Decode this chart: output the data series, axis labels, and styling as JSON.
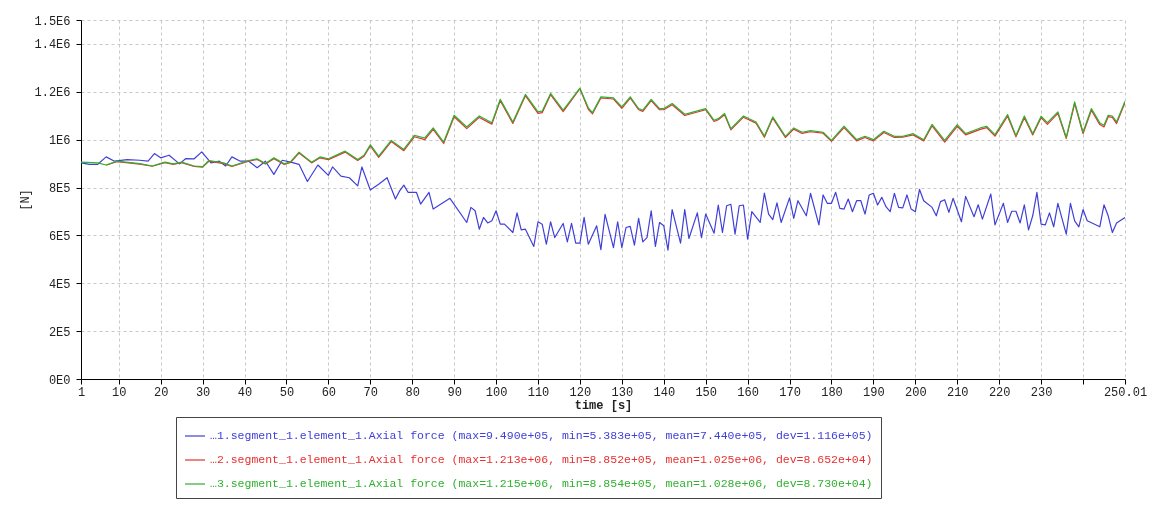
{
  "chart_data": {
    "type": "line",
    "xlabel": "time [s]",
    "ylabel": "[N]",
    "legend": "bottom",
    "grid": true,
    "marker": "none",
    "line_style": "solid",
    "xlim": [
      1,
      250.01
    ],
    "xticks": [
      1,
      10,
      20,
      30,
      40,
      50,
      60,
      70,
      80,
      90,
      100,
      110,
      120,
      130,
      140,
      150,
      160,
      170,
      180,
      190,
      200,
      210,
      220,
      230,
      {
        "value": 240,
        "label": null
      },
      250.01
    ],
    "ylim": [
      0,
      1500000
    ],
    "yticks": [
      {
        "value": 0,
        "label": "0E0"
      },
      {
        "value": 200000,
        "label": "2E5"
      },
      {
        "value": 400000,
        "label": "4E5"
      },
      {
        "value": 600000,
        "label": "6E5"
      },
      {
        "value": 800000,
        "label": "8E5"
      },
      {
        "value": 1000000,
        "label": "1E6"
      },
      {
        "value": 1200000,
        "label": "1.2E6"
      },
      {
        "value": 1400000,
        "label": "1.4E6"
      },
      {
        "value": 1500000,
        "label": "1.5E6"
      }
    ],
    "series": [
      {
        "name": "…1.segment_1.element_1.Axial force (max=9.490e+05, min=5.383e+05, mean=7.440e+05, dev=1.116e+05)",
        "color": "#4040d8",
        "x": [
          1,
          3,
          5,
          7,
          9,
          12,
          15,
          17,
          18.5,
          20,
          22,
          24.5,
          26,
          28,
          29.8,
          32,
          34,
          35.5,
          37,
          39,
          41,
          43,
          45,
          47,
          49,
          51,
          53,
          55,
          57.5,
          60,
          61,
          63,
          65,
          67,
          68,
          70,
          72,
          74,
          76,
          77,
          78,
          79,
          81,
          82,
          84,
          85,
          89,
          93,
          94,
          95,
          96,
          97,
          98,
          99,
          100,
          101,
          102,
          104,
          105,
          106,
          107,
          109,
          110,
          111,
          112,
          113,
          114,
          116,
          117,
          118,
          119,
          120,
          121,
          122,
          124,
          125,
          126,
          128,
          129,
          130,
          131,
          132,
          133,
          134,
          135,
          136,
          137,
          138,
          139,
          140,
          141,
          142,
          144,
          145,
          146,
          148,
          149,
          150,
          152,
          153,
          154,
          155,
          156,
          157,
          158,
          159,
          160,
          161,
          163,
          164,
          165,
          166,
          167,
          168,
          170,
          171,
          172,
          174,
          175,
          177,
          178,
          179,
          180,
          181,
          182,
          183,
          184,
          185,
          186,
          187,
          188,
          189,
          190,
          191,
          192,
          193,
          194,
          195,
          196,
          197,
          198,
          199,
          200,
          201,
          202,
          204,
          205,
          206,
          207,
          208,
          209,
          211,
          212,
          214,
          215,
          216,
          218,
          219,
          221,
          222,
          223,
          224,
          225,
          226,
          227,
          228,
          229,
          230,
          231,
          232,
          233,
          234,
          236,
          237,
          238,
          239,
          240,
          241,
          244,
          245,
          246,
          247,
          248,
          250.01
        ],
        "values": [
          903000,
          897000,
          897000,
          928000,
          910000,
          917000,
          914000,
          910000,
          942000,
          924000,
          935000,
          899000,
          921000,
          920000,
          949000,
          903000,
          910000,
          890000,
          928000,
          910000,
          910000,
          883000,
          910000,
          855000,
          914000,
          906000,
          897000,
          825000,
          894000,
          851000,
          886000,
          848000,
          841000,
          807000,
          886000,
          790000,
          814000,
          841000,
          752000,
          786000,
          810000,
          780000,
          780000,
          731000,
          780000,
          710000,
          755000,
          654000,
          717000,
          703000,
          626000,
          675000,
          652000,
          661000,
          703000,
          647000,
          647000,
          612000,
          694000,
          623000,
          626000,
          554000,
          657000,
          647000,
          563000,
          657000,
          591000,
          650000,
          573000,
          650000,
          568000,
          568000,
          675000,
          563000,
          640000,
          540000,
          688000,
          549000,
          657000,
          549000,
          633000,
          638000,
          559000,
          671000,
          573000,
          591000,
          703000,
          554000,
          654000,
          640000,
          538000,
          708000,
          568000,
          708000,
          587000,
          694000,
          591000,
          689000,
          609000,
          727000,
          612000,
          724000,
          730000,
          605000,
          724000,
          727000,
          584000,
          699000,
          654000,
          777000,
          689000,
          666000,
          736000,
          654000,
          757000,
          671000,
          745000,
          682000,
          776000,
          644000,
          769000,
          734000,
          734000,
          780000,
          713000,
          710000,
          752000,
          699000,
          745000,
          745000,
          689000,
          769000,
          776000,
          727000,
          759000,
          720000,
          699000,
          776000,
          717000,
          715000,
          769000,
          710000,
          699000,
          792000,
          745000,
          717000,
          682000,
          741000,
          749000,
          696000,
          755000,
          657000,
          763000,
          678000,
          728000,
          668000,
          773000,
          644000,
          734000,
          654000,
          701000,
          701000,
          652000,
          728000,
          623000,
          682000,
          780000,
          647000,
          644000,
          694000,
          636000,
          734000,
          605000,
          734000,
          661000,
          636000,
          708000,
          661000,
          636000,
          728000,
          682000,
          612000,
          652000,
          675000
        ]
      },
      {
        "name": "…2.segment_1.element_1.Axial force (max=1.213e+06, min=8.852e+05, mean=1.025e+06, dev=8.652e+04)",
        "color": "#e83030",
        "x": [
          7,
          9.5,
          15,
          18,
          21,
          23,
          25,
          28,
          30,
          31.5,
          35,
          37,
          41,
          43,
          45,
          47,
          49.5,
          51,
          53,
          56,
          58,
          60,
          64,
          67,
          68.5,
          70,
          72,
          75,
          78,
          80.5,
          83,
          85,
          87.5,
          90,
          93,
          96,
          99,
          101,
          104,
          107,
          110,
          111,
          113,
          116,
          120,
          122,
          123,
          125,
          128,
          130,
          132,
          134,
          135,
          137,
          139,
          140,
          142,
          145,
          150,
          152,
          153,
          154.5,
          156,
          159,
          162,
          164,
          166,
          169,
          171,
          173,
          175,
          178,
          180,
          183,
          186,
          188,
          190,
          192.5,
          195,
          197,
          199.5,
          202,
          204,
          207,
          210,
          212,
          215.5,
          217,
          219,
          222,
          224,
          226,
          228,
          230,
          231.5,
          234,
          236,
          238,
          240,
          242,
          244,
          245,
          246,
          247,
          248,
          250.01
        ],
        "values": [
          893000,
          908000,
          898000,
          889000,
          904000,
          897000,
          904000,
          888000,
          885000,
          910000,
          900000,
          888000,
          910000,
          917000,
          898000,
          920000,
          896000,
          905000,
          944000,
          903000,
          924000,
          916000,
          948000,
          913000,
          931000,
          974000,
          926000,
          992000,
          954000,
          1012000,
          1000000,
          1043000,
          984000,
          1096000,
          1046000,
          1093000,
          1065000,
          1163000,
          1068000,
          1184000,
          1110000,
          1113000,
          1188000,
          1117000,
          1213000,
          1127000,
          1108000,
          1174000,
          1170000,
          1131000,
          1174000,
          1125000,
          1118000,
          1163000,
          1125000,
          1125000,
          1146000,
          1101000,
          1125000,
          1076000,
          1083000,
          1104000,
          1041000,
          1094000,
          1069000,
          1010000,
          1090000,
          1009000,
          1044000,
          1026000,
          1033000,
          1027000,
          993000,
          1050000,
          995000,
          1009000,
          995000,
          1030000,
          1009000,
          1010000,
          1020000,
          995000,
          1058000,
          990000,
          1056000,
          1020000,
          1043000,
          1050000,
          1015000,
          1098000,
          1012000,
          1092000,
          1020000,
          1092000,
          1064000,
          1110000,
          1005000,
          1151000,
          1025000,
          1123000,
          1063000,
          1053000,
          1096000,
          1093000,
          1067000,
          1155000
        ]
      },
      {
        "name": "…3.segment_1.element_1.Axial force (max=1.215e+06, min=8.854e+05, mean=1.028e+06, dev=8.730e+04)",
        "color": "#30b030",
        "x": [
          1,
          5,
          7,
          9.5,
          15,
          18,
          21,
          23,
          25,
          28,
          30,
          31.5,
          35,
          37,
          41,
          43,
          45,
          47,
          49.5,
          51,
          53,
          56,
          58,
          60,
          64,
          67,
          68.5,
          70,
          72,
          75,
          78,
          80.5,
          83,
          85,
          87.5,
          90,
          93,
          96,
          99,
          101,
          104,
          107,
          110,
          111,
          113,
          116,
          120,
          122,
          123,
          125,
          128,
          130,
          132,
          134,
          135,
          137,
          139,
          140,
          142,
          145,
          150,
          152,
          153,
          154.5,
          156,
          159,
          162,
          164,
          166,
          169,
          171,
          173,
          175,
          178,
          180,
          183,
          186,
          188,
          190,
          192.5,
          195,
          197,
          199.5,
          202,
          204,
          207,
          210,
          212,
          215.5,
          217,
          219,
          222,
          224,
          226,
          228,
          230,
          231.5,
          234,
          236,
          238,
          240,
          242,
          244,
          245,
          246,
          247,
          248,
          250.01
        ],
        "values": [
          906000,
          903000,
          894000,
          910000,
          900000,
          890000,
          906000,
          899000,
          906000,
          890000,
          887000,
          913000,
          903000,
          890000,
          913000,
          920000,
          900000,
          924000,
          899000,
          908000,
          948000,
          906000,
          928000,
          920000,
          952000,
          917000,
          935000,
          979000,
          931000,
          997000,
          959000,
          1018000,
          1007000,
          1049000,
          990000,
          1102000,
          1053000,
          1099000,
          1071000,
          1169000,
          1074000,
          1189000,
          1116000,
          1119000,
          1193000,
          1123000,
          1215000,
          1133000,
          1113000,
          1179000,
          1175000,
          1137000,
          1179000,
          1130000,
          1123000,
          1168000,
          1130000,
          1130000,
          1151000,
          1106000,
          1130000,
          1081000,
          1088000,
          1109000,
          1046000,
          1099000,
          1074000,
          1015000,
          1095000,
          1014000,
          1049000,
          1031000,
          1038000,
          1031000,
          997000,
          1056000,
          1000000,
          1014000,
          1000000,
          1035000,
          1014000,
          1014000,
          1025000,
          1000000,
          1064000,
          997000,
          1063000,
          1025000,
          1049000,
          1056000,
          1021000,
          1105000,
          1017000,
          1099000,
          1025000,
          1098000,
          1071000,
          1116000,
          1010000,
          1158000,
          1031000,
          1130000,
          1070000,
          1060000,
          1102000,
          1099000,
          1074000,
          1161000
        ]
      }
    ]
  }
}
